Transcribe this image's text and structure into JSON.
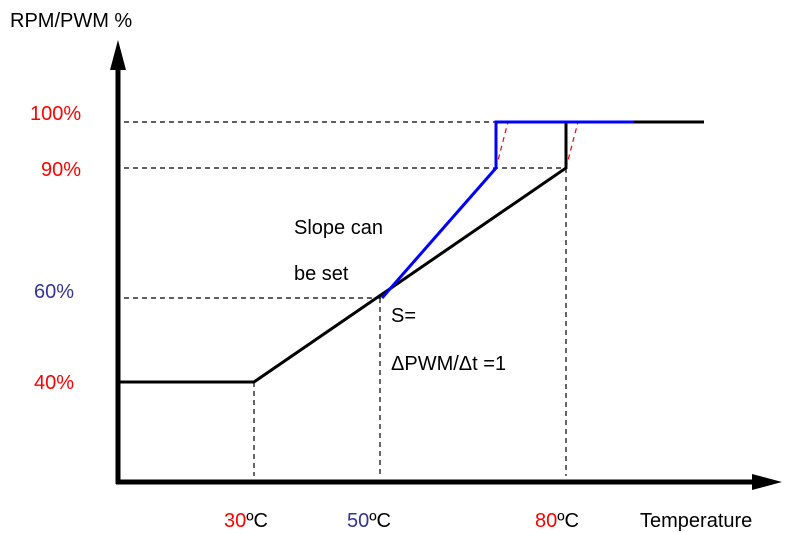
{
  "y_axis_title": "RPM/PWM %",
  "x_axis_title": "Temperature",
  "y_ticks": [
    {
      "label": "100%",
      "color": "#ff0000"
    },
    {
      "label": "90%",
      "color": "#ff0000"
    },
    {
      "label": "60%",
      "color": "#333399"
    },
    {
      "label": "40%",
      "color": "#ff0000"
    }
  ],
  "x_ticks": [
    {
      "value": "30",
      "unit": "ºC",
      "value_color": "#ff0000"
    },
    {
      "value": "50",
      "unit": "ºC",
      "value_color": "#333399"
    },
    {
      "value": "80",
      "unit": "ºC",
      "value_color": "#ff0000"
    }
  ],
  "annotations": {
    "slope_line1": "Slope can",
    "slope_line2": "be set",
    "formula_line1": "S=",
    "formula_line2": "ΔPWM/Δt =1"
  },
  "colors": {
    "axis": "#000000",
    "default_curve": "#000000",
    "adjusted_curve": "#0000ff",
    "ramp_dashes": "#ff0000",
    "guides": "#000000"
  }
}
